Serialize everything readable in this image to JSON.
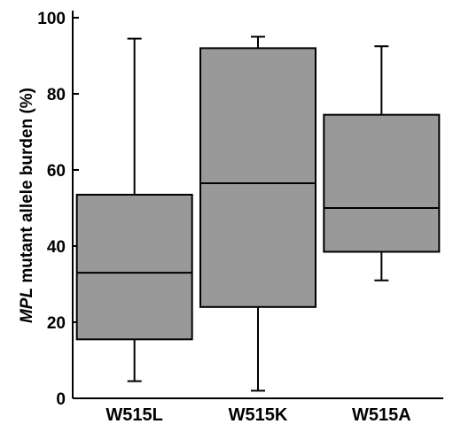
{
  "chart_data": {
    "type": "box",
    "categories": [
      "W515L",
      "W515K",
      "W515A"
    ],
    "series": [
      {
        "category": "W515L",
        "min": 4.5,
        "q1": 15.5,
        "median": 33,
        "q3": 53.5,
        "max": 94.5
      },
      {
        "category": "W515K",
        "min": 2,
        "q1": 24,
        "median": 56.5,
        "q3": 92,
        "max": 95
      },
      {
        "category": "W515A",
        "min": 31,
        "q1": 38.5,
        "median": 50,
        "q3": 74.5,
        "max": 92.5
      }
    ],
    "ylabel": {
      "italic": "MPL",
      "rest": " mutant allele burden (%)"
    },
    "ylim": [
      0,
      100
    ],
    "yticks": [
      {
        "value": 0,
        "label": "0"
      },
      {
        "value": 20,
        "label": "20"
      },
      {
        "value": 40,
        "label": "40"
      },
      {
        "value": 60,
        "label": "60"
      },
      {
        "value": 80,
        "label": "80"
      },
      {
        "value": 100,
        "label": "100"
      }
    ],
    "grid": false,
    "colors": {
      "box_fill": "#999999",
      "stroke": "#000000"
    }
  }
}
